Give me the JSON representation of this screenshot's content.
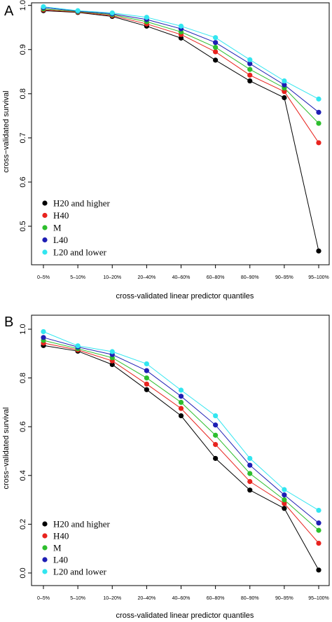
{
  "chart_data": [
    {
      "panel": "A",
      "type": "line",
      "xlabel": "cross-validated linear predictor quantiles",
      "ylabel": "cross−validated survival",
      "categories": [
        "0–5%",
        "5–10%",
        "10–20%",
        "20–40%",
        "40–60%",
        "60–80%",
        "80–90%",
        "90–95%",
        "95–100%"
      ],
      "yticks": [
        "0.5",
        "0.6",
        "0.7",
        "0.8",
        "0.9",
        "1.0"
      ],
      "ylim": [
        0.44,
        1.0
      ],
      "grid": false,
      "legend_position": "bottom-left",
      "series": [
        {
          "name": "H20 and higher",
          "color": "#000000",
          "values": [
            0.988,
            0.984,
            0.975,
            0.953,
            0.926,
            0.876,
            0.829,
            0.791,
            0.444
          ]
        },
        {
          "name": "H40",
          "color": "#e8231e",
          "values": [
            0.99,
            0.985,
            0.977,
            0.958,
            0.934,
            0.895,
            0.842,
            0.805,
            0.689
          ]
        },
        {
          "name": "M",
          "color": "#2dbe2d",
          "values": [
            0.992,
            0.986,
            0.979,
            0.963,
            0.94,
            0.905,
            0.855,
            0.813,
            0.733
          ]
        },
        {
          "name": "L40",
          "color": "#1e1eb4",
          "values": [
            0.995,
            0.987,
            0.981,
            0.968,
            0.947,
            0.916,
            0.868,
            0.82,
            0.758
          ]
        },
        {
          "name": "L20 and lower",
          "color": "#32e6f0",
          "values": [
            0.997,
            0.988,
            0.983,
            0.973,
            0.953,
            0.927,
            0.877,
            0.829,
            0.788
          ]
        }
      ]
    },
    {
      "panel": "B",
      "type": "line",
      "xlabel": "cross-validated linear predictor quantiles",
      "ylabel": "cross−validated survival",
      "categories": [
        "0–5%",
        "5–10%",
        "10–20%",
        "20–40%",
        "40–60%",
        "60–80%",
        "80–90%",
        "90–95%",
        "95–100%"
      ],
      "yticks": [
        "0.0",
        "0.2",
        "0.4",
        "0.6",
        "0.8",
        "1.0"
      ],
      "ylim": [
        0.0,
        1.0
      ],
      "grid": false,
      "legend_position": "bottom-left",
      "series": [
        {
          "name": "H20 and higher",
          "color": "#000000",
          "values": [
            0.933,
            0.91,
            0.855,
            0.752,
            0.645,
            0.47,
            0.34,
            0.265,
            0.012
          ]
        },
        {
          "name": "H40",
          "color": "#e8231e",
          "values": [
            0.943,
            0.915,
            0.87,
            0.775,
            0.675,
            0.527,
            0.375,
            0.285,
            0.122
          ]
        },
        {
          "name": "M",
          "color": "#2dbe2d",
          "values": [
            0.954,
            0.92,
            0.883,
            0.8,
            0.7,
            0.565,
            0.408,
            0.3,
            0.175
          ]
        },
        {
          "name": "L40",
          "color": "#1e1eb4",
          "values": [
            0.966,
            0.927,
            0.896,
            0.83,
            0.725,
            0.607,
            0.442,
            0.32,
            0.205
          ]
        },
        {
          "name": "L20 and lower",
          "color": "#32e6f0",
          "values": [
            0.99,
            0.932,
            0.908,
            0.858,
            0.75,
            0.645,
            0.47,
            0.342,
            0.257
          ]
        }
      ]
    }
  ]
}
